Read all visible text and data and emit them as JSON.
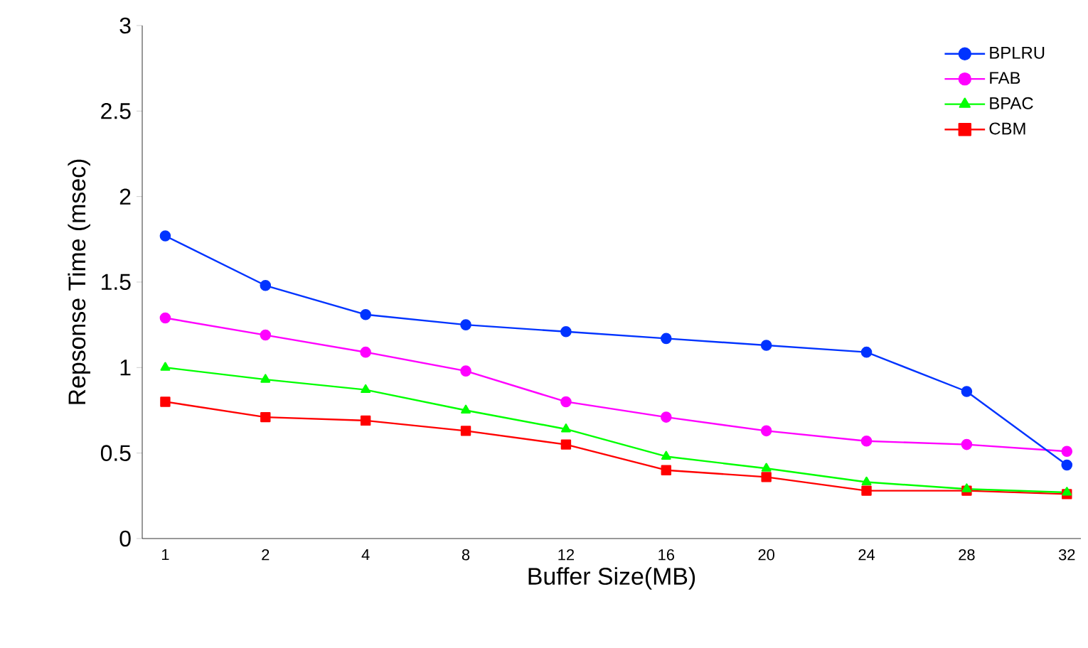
{
  "chart_data": {
    "type": "line",
    "xlabel": "Buffer Size(MB)",
    "ylabel": "Repsonse Time (msec)",
    "categories": [
      "1",
      "2",
      "4",
      "8",
      "12",
      "16",
      "20",
      "24",
      "28",
      "32"
    ],
    "ylim": [
      0,
      3
    ],
    "yticks": [
      0,
      0.5,
      1,
      1.5,
      2,
      2.5,
      3
    ],
    "grid": false,
    "legend": "top right",
    "series": [
      {
        "name": "BPLRU",
        "color": "#0033ff",
        "marker": "circle",
        "values": [
          1.77,
          1.48,
          1.31,
          1.25,
          1.21,
          1.17,
          1.13,
          1.09,
          0.86,
          0.43
        ]
      },
      {
        "name": "FAB",
        "color": "#ff00ff",
        "marker": "circle",
        "values": [
          1.29,
          1.19,
          1.09,
          0.98,
          0.8,
          0.71,
          0.63,
          0.57,
          0.55,
          0.51
        ]
      },
      {
        "name": "BPAC",
        "color": "#00ff00",
        "marker": "triangle",
        "values": [
          1.0,
          0.93,
          0.87,
          0.75,
          0.64,
          0.48,
          0.41,
          0.33,
          0.29,
          0.27
        ]
      },
      {
        "name": "CBM",
        "color": "#ff0000",
        "marker": "square",
        "values": [
          0.8,
          0.71,
          0.69,
          0.63,
          0.55,
          0.4,
          0.36,
          0.28,
          0.28,
          0.26
        ]
      }
    ]
  }
}
